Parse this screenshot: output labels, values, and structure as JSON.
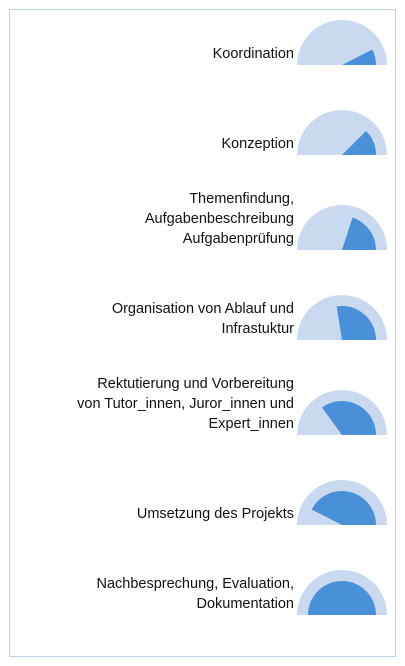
{
  "chart_data": {
    "type": "pie",
    "title": "",
    "colors": {
      "track": "#c9d9ef",
      "fill": "#4a90d9",
      "frame": "#bcd2e6"
    },
    "items": [
      {
        "lines": [
          "Koordination"
        ],
        "value": 0.15
      },
      {
        "lines": [
          "Konzeption"
        ],
        "value": 0.25
      },
      {
        "lines": [
          "Themenfindung,",
          "Aufgabenbeschreibung",
          "Aufgabenprüfung"
        ],
        "value": 0.4
      },
      {
        "lines": [
          "Organisation von Ablauf und",
          "Infrastuktur"
        ],
        "value": 0.55
      },
      {
        "lines": [
          "Rektutierung und Vorbereitung",
          "von Tutor_innen, Juror_innen und",
          "Expert_innen"
        ],
        "value": 0.7
      },
      {
        "lines": [
          "Umsetzung des Projekts"
        ],
        "value": 0.85
      },
      {
        "lines": [
          "Nachbesprechung, Evaluation,",
          "Dokumentation"
        ],
        "value": 1.0
      }
    ]
  }
}
